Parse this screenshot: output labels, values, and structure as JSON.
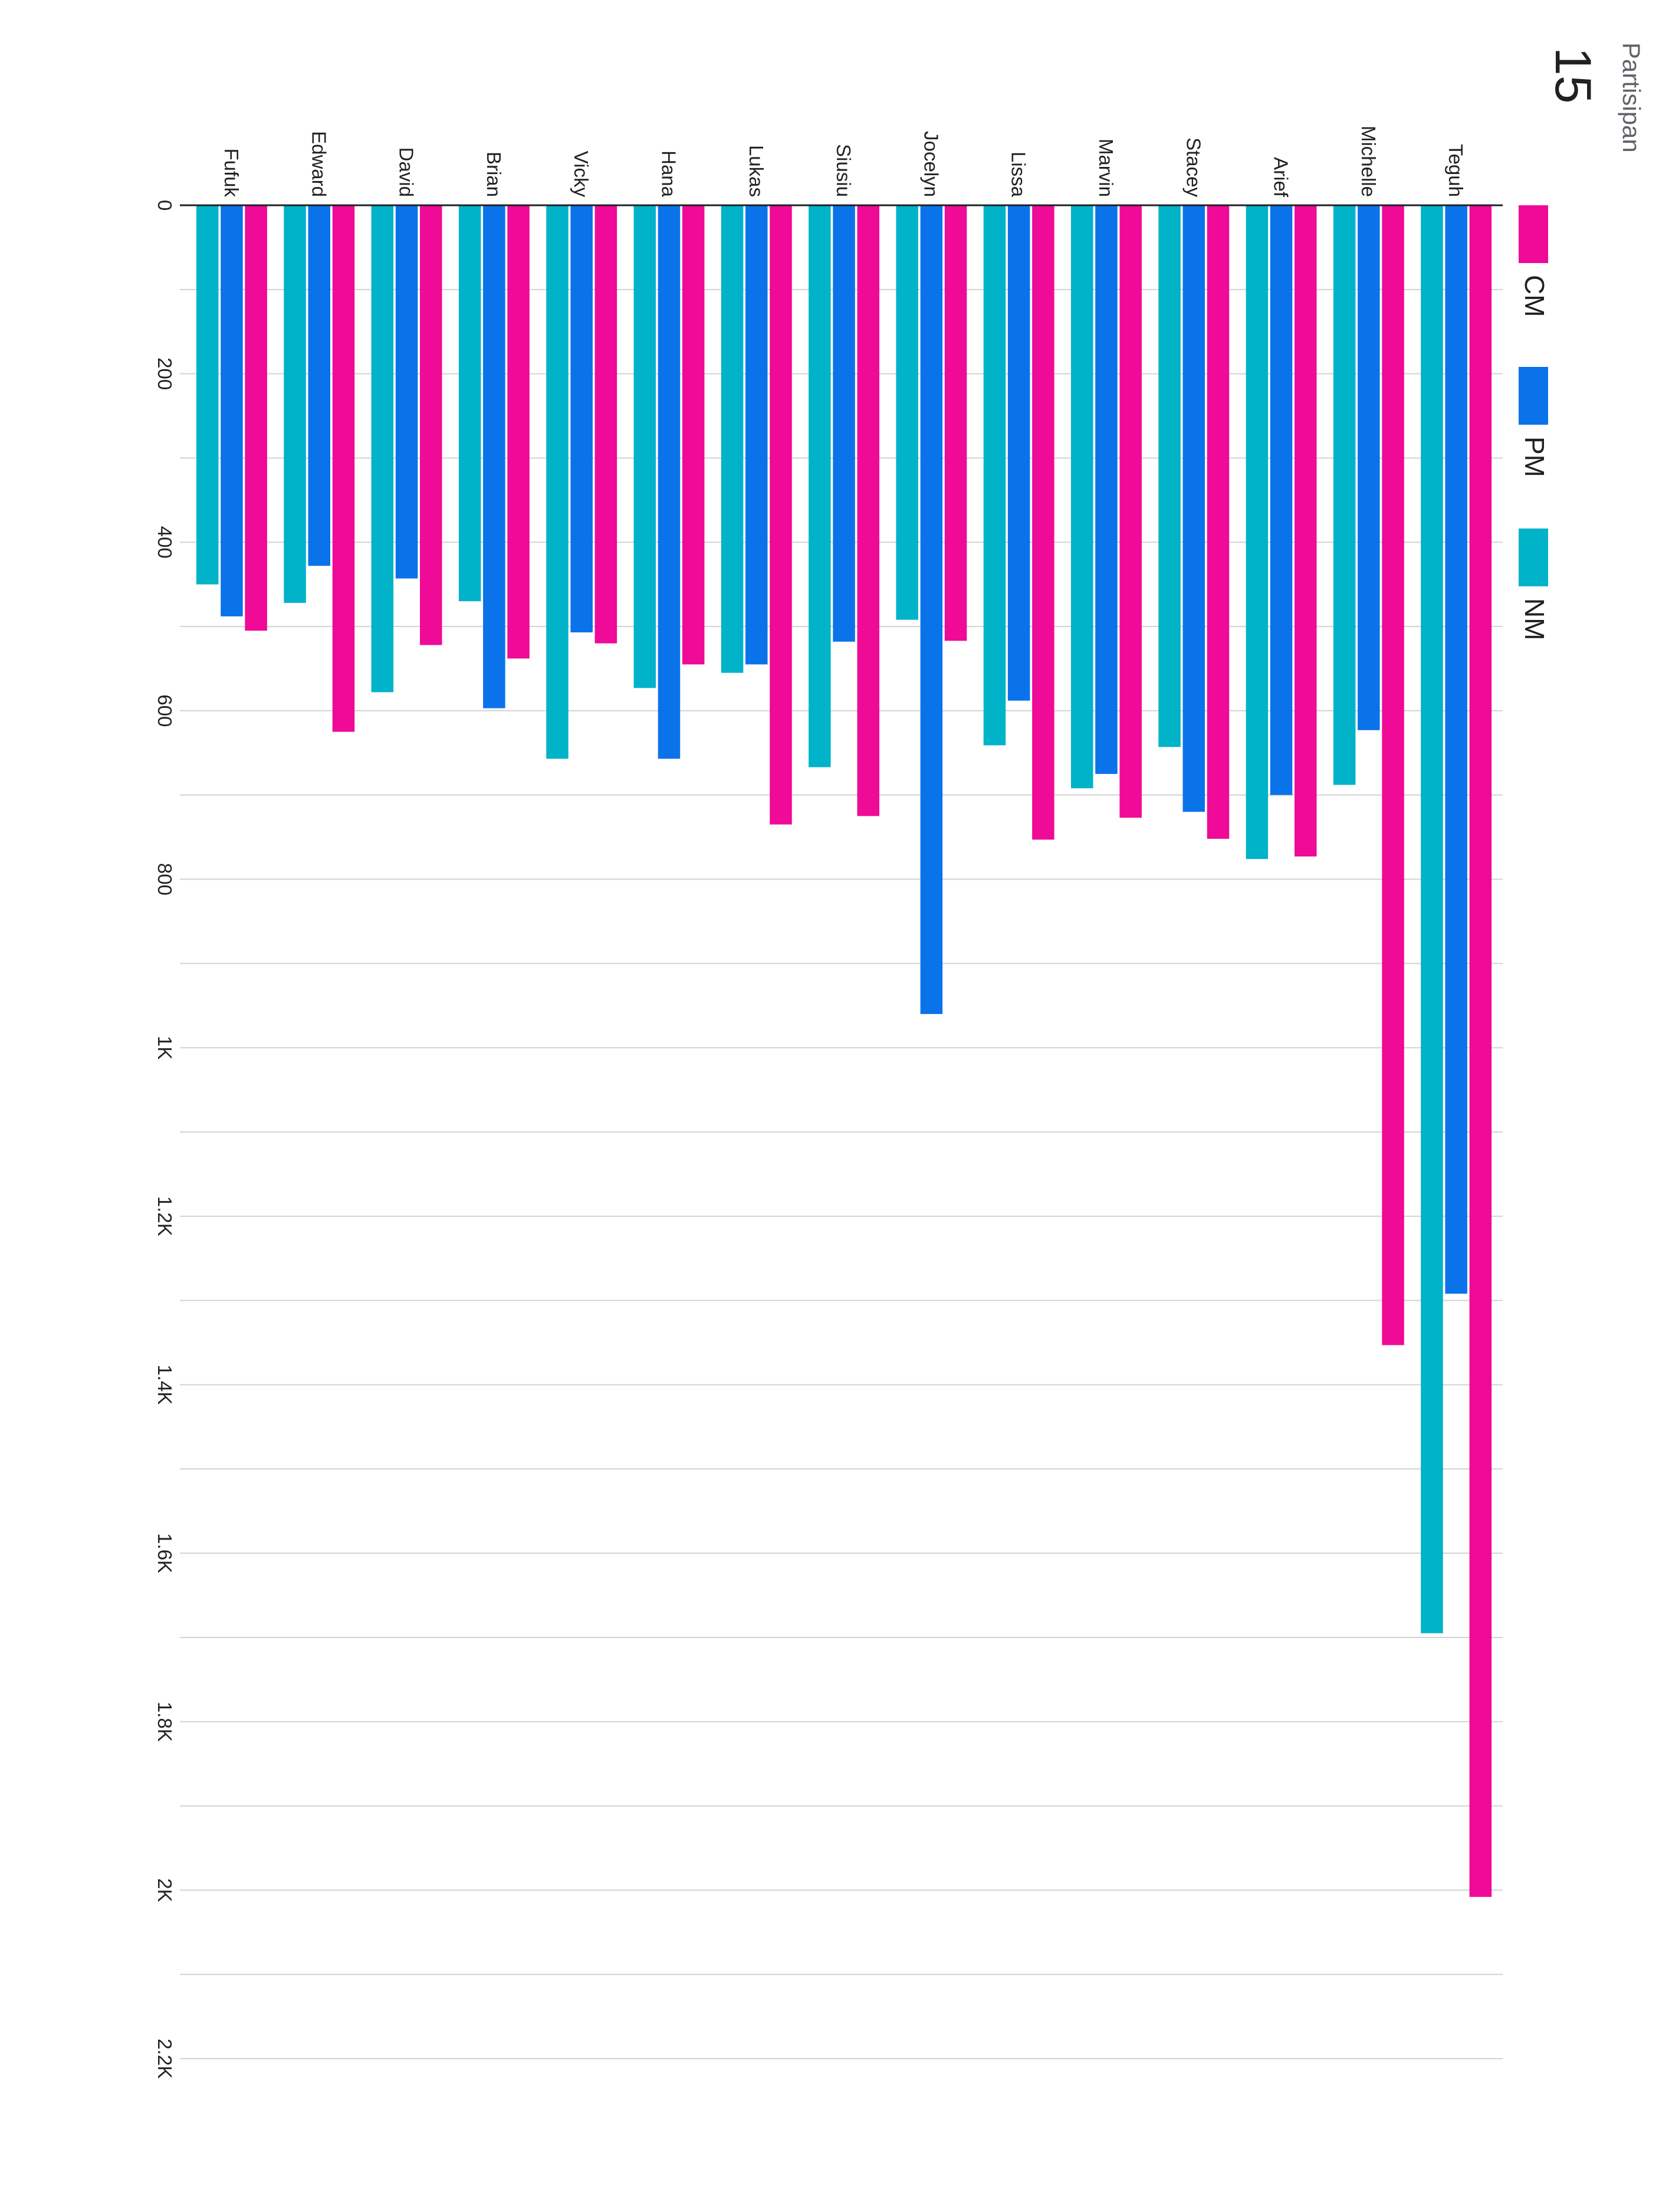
{
  "summary": {
    "count": "15",
    "label": "Partisipan"
  },
  "chart_data": {
    "type": "bar",
    "orientation": "rotated-90-clockwise",
    "categories": [
      "Fufuk",
      "Edward",
      "David",
      "Brian",
      "Vicky",
      "Hana",
      "Lukas",
      "Siusiu",
      "Jocelyn",
      "Lissa",
      "Marvin",
      "Stacey",
      "Arief",
      "Michelle",
      "Teguh"
    ],
    "series": [
      {
        "name": "NM",
        "color": "#00b3c8",
        "values": [
          450,
          472,
          578,
          470,
          657,
          573,
          555,
          667,
          492,
          641,
          692,
          643,
          776,
          688,
          1695
        ]
      },
      {
        "name": "PM",
        "color": "#0a73ea",
        "values": [
          488,
          428,
          443,
          597,
          507,
          657,
          545,
          518,
          960,
          588,
          675,
          720,
          700,
          623,
          1292
        ]
      },
      {
        "name": "CM",
        "color": "#ef0a97",
        "values": [
          505,
          625,
          522,
          538,
          520,
          545,
          735,
          725,
          517,
          753,
          727,
          752,
          773,
          1353,
          2008
        ]
      }
    ],
    "ylim": [
      0,
      2200
    ],
    "ticks": [
      {
        "v": 0,
        "label": "0"
      },
      {
        "v": 200,
        "label": "200"
      },
      {
        "v": 400,
        "label": "400"
      },
      {
        "v": 600,
        "label": "600"
      },
      {
        "v": 800,
        "label": "800"
      },
      {
        "v": 1000,
        "label": "1K"
      },
      {
        "v": 1200,
        "label": "1.2K"
      },
      {
        "v": 1400,
        "label": "1.4K"
      },
      {
        "v": 1600,
        "label": "1.6K"
      },
      {
        "v": 1800,
        "label": "1.8K"
      },
      {
        "v": 2000,
        "label": "2K"
      },
      {
        "v": 2200,
        "label": "2.2K"
      }
    ],
    "gridline_step": 100,
    "grid": true,
    "legend": "right",
    "legend_order": [
      "CM",
      "PM",
      "NM"
    ]
  }
}
